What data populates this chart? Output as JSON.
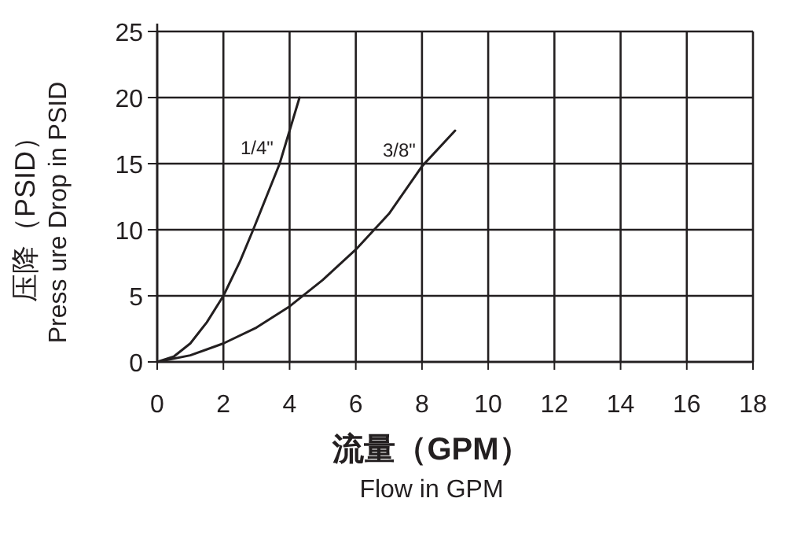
{
  "chart_data": {
    "type": "line",
    "xlabel": "流量（GPM）\nFlow in GPM",
    "ylabel": "压降（PSID）\nPress ure Drop in PSID",
    "xlim": [
      0,
      18
    ],
    "xticks": [
      0,
      2,
      4,
      6,
      8,
      10,
      12,
      14,
      16,
      18
    ],
    "ylim": [
      0,
      25
    ],
    "yticks": [
      0,
      5,
      10,
      15,
      20,
      25
    ],
    "grid": true,
    "marker": "none",
    "line_style": "solid",
    "series": [
      {
        "name": "1/4\"",
        "color": "#231f20",
        "x": [
          0,
          0.5,
          1,
          1.5,
          2,
          2.5,
          2.9,
          3.3,
          3.7,
          4,
          4.3
        ],
        "values": [
          0,
          0.4,
          1.4,
          3,
          5,
          7.6,
          10,
          12.5,
          15,
          17.5,
          20
        ]
      },
      {
        "name": "3/8\"",
        "color": "#231f20",
        "x": [
          0,
          1,
          2,
          3,
          4,
          5,
          6,
          7,
          8,
          9
        ],
        "values": [
          0,
          0.5,
          1.4,
          2.6,
          4.2,
          6.2,
          8.5,
          11.2,
          14.8,
          17.5
        ]
      }
    ]
  }
}
